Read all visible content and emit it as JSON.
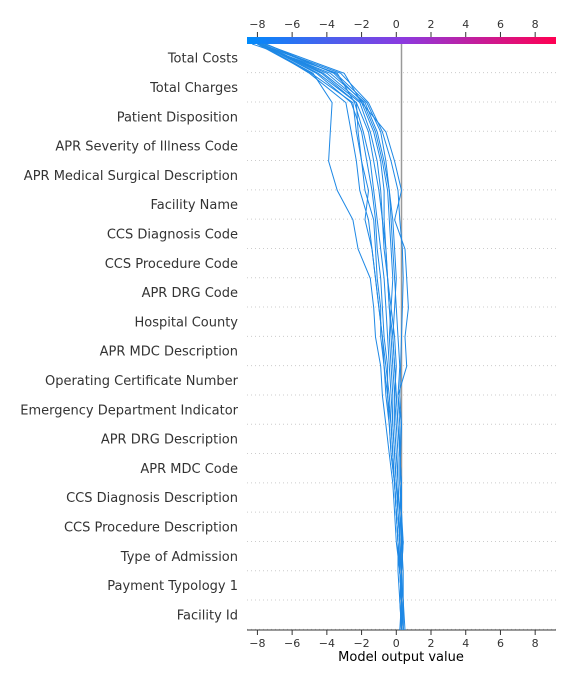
{
  "chart_data": {
    "type": "line",
    "title": "",
    "xlabel": "Model output value",
    "ylabel": "",
    "xlim": [
      -8.6,
      9.2
    ],
    "xticks": [
      -8,
      -6,
      -4,
      -2,
      0,
      2,
      4,
      6,
      8
    ],
    "base_value": 0.3,
    "features": [
      "Total Costs",
      "Total Charges",
      "Patient Disposition",
      "APR Severity of Illness Code",
      "APR Medical Surgical Description",
      "Facility Name",
      "CCS Diagnosis Code",
      "CCS Procedure Code",
      "APR DRG Code",
      "Hospital County",
      "APR MDC Description",
      "Operating Certificate Number",
      "Emergency Department Indicator",
      "APR DRG Description",
      "APR MDC Code",
      "CCS Diagnosis Description",
      "CCS Procedure Description",
      "Type of Admission",
      "Payment Typology 1",
      "Facility Id"
    ],
    "line_color": "#1E88E5",
    "colorbar": {
      "from": "#008bfb",
      "mid": "#8b3ae0",
      "to": "#ff0052"
    },
    "grid": "dotted-horizontal",
    "series": [
      {
        "values": [
          -7.8,
          -3.2,
          -1.6,
          -0.8,
          -0.3,
          0.1,
          0.2,
          0.35,
          0.4,
          0.35,
          0.3,
          0.25,
          0.2,
          0.3,
          0.25,
          0.2,
          0.3,
          0.35,
          0.3,
          0.2,
          0.3
        ]
      },
      {
        "values": [
          -7.8,
          -4.3,
          -2.3,
          -2.2,
          -2.0,
          -1.8,
          -1.3,
          -1.2,
          -1.1,
          -0.9,
          -0.9,
          -0.7,
          -0.5,
          -0.4,
          -0.3,
          -0.1,
          0.0,
          0.1,
          0.2,
          0.4,
          0.5
        ]
      },
      {
        "values": [
          -7.7,
          -4.5,
          -2.3,
          -1.6,
          -1.3,
          -1.0,
          -0.8,
          -0.6,
          -0.5,
          -0.4,
          -0.3,
          -0.2,
          -0.1,
          -0.1,
          0.0,
          0.1,
          0.1,
          0.2,
          0.2,
          0.3,
          0.4
        ]
      },
      {
        "values": [
          -7.8,
          -3.5,
          -1.7,
          -0.9,
          -0.6,
          -0.4,
          -0.3,
          -0.2,
          -0.1,
          0.0,
          0.1,
          0.2,
          0.1,
          0.2,
          0.2,
          0.3,
          0.3,
          0.4,
          0.3,
          0.3,
          0.4
        ]
      },
      {
        "values": [
          -7.9,
          -4.8,
          -3.7,
          -3.8,
          -3.9,
          -3.4,
          -2.5,
          -2.2,
          -1.5,
          -1.3,
          -1.2,
          -0.9,
          -0.8,
          -0.6,
          -0.4,
          -0.2,
          -0.1,
          0.0,
          0.2,
          0.3,
          0.4
        ]
      },
      {
        "values": [
          -8.3,
          -3.4,
          -2.4,
          -1.9,
          -1.5,
          -1.3,
          -1.1,
          -0.9,
          -0.7,
          -0.6,
          -0.5,
          -0.4,
          -0.3,
          -0.2,
          -0.1,
          0.0,
          0.1,
          0.2,
          0.3,
          0.3,
          0.3
        ]
      },
      {
        "values": [
          -8.0,
          -4.9,
          -2.5,
          -2.3,
          -2.0,
          -1.6,
          -1.8,
          -1.4,
          -1.2,
          -1.0,
          -0.8,
          -0.7,
          -0.6,
          -0.4,
          -0.3,
          -0.1,
          0.0,
          0.1,
          0.2,
          0.4,
          0.4
        ]
      },
      {
        "values": [
          -7.6,
          -3.0,
          -2.0,
          -1.3,
          -0.9,
          -0.7,
          -0.7,
          -0.6,
          -0.5,
          -0.4,
          -0.2,
          -0.1,
          0.0,
          0.1,
          0.2,
          0.3,
          0.2,
          0.3,
          0.2,
          0.3,
          0.3
        ]
      },
      {
        "values": [
          -7.8,
          -5.0,
          -2.9,
          -2.6,
          -2.3,
          -2.1,
          -1.6,
          -1.4,
          -1.2,
          -1.0,
          -0.8,
          -0.6,
          -0.4,
          -0.3,
          -0.2,
          -0.1,
          0.0,
          0.1,
          0.2,
          0.3,
          0.4
        ]
      },
      {
        "values": [
          -7.9,
          -4.0,
          -2.0,
          -0.6,
          -0.1,
          0.3,
          -0.1,
          0.5,
          0.6,
          0.7,
          0.5,
          0.6,
          0.1,
          0.3,
          0.2,
          0.3,
          0.2,
          0.4,
          0.3,
          0.4,
          0.4
        ]
      },
      {
        "values": [
          -8.0,
          -3.8,
          -1.8,
          -1.1,
          -0.7,
          -0.4,
          -0.2,
          -0.1,
          0.0,
          -0.1,
          -0.2,
          -0.1,
          0.0,
          0.1,
          0.2,
          0.2,
          0.3,
          0.3,
          0.4,
          0.4,
          0.4
        ]
      },
      {
        "values": [
          -7.7,
          -4.2,
          -2.1,
          -1.5,
          -1.1,
          -0.9,
          -0.8,
          -0.7,
          -0.5,
          -0.3,
          -0.4,
          -0.3,
          -0.2,
          -0.2,
          -0.1,
          0.0,
          0.1,
          0.2,
          0.2,
          0.3,
          0.3
        ]
      },
      {
        "values": [
          -7.5,
          -3.6,
          -1.9,
          -1.2,
          -0.8,
          -0.5,
          -0.4,
          -0.3,
          -0.2,
          -0.3,
          -0.1,
          0.0,
          -0.1,
          0.0,
          0.1,
          0.1,
          0.2,
          0.2,
          0.3,
          0.3,
          0.2
        ]
      },
      {
        "values": [
          -7.8,
          -4.6,
          -2.6,
          -2.0,
          -1.7,
          -1.4,
          -1.2,
          -1.1,
          -0.9,
          -0.8,
          -0.7,
          -0.5,
          -0.5,
          -0.3,
          -0.2,
          -0.1,
          0.0,
          0.1,
          0.1,
          0.2,
          0.3
        ]
      }
    ]
  }
}
